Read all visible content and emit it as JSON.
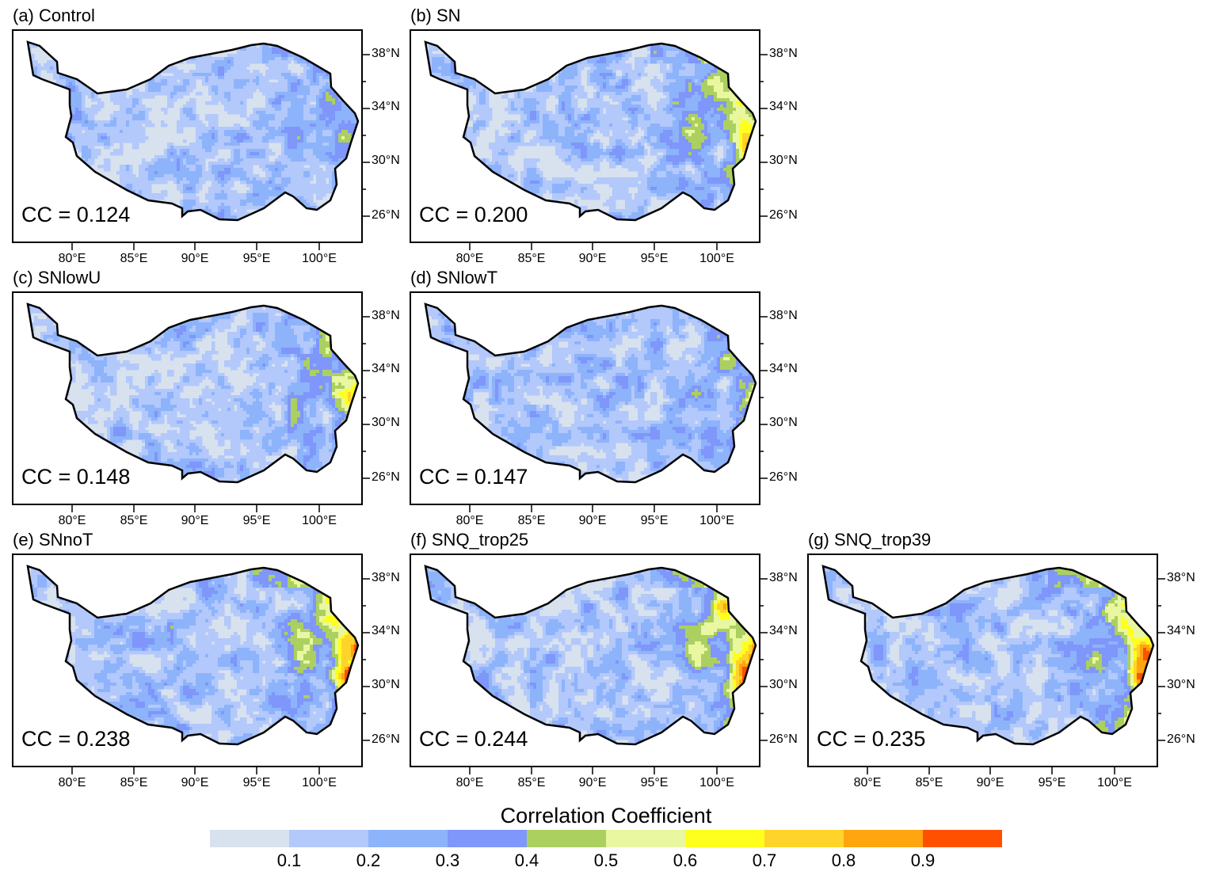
{
  "colorbar": {
    "title": "Correlation Coefficient",
    "labels": [
      "0.1",
      "0.2",
      "0.3",
      "0.4",
      "0.5",
      "0.6",
      "0.7",
      "0.8",
      "0.9"
    ],
    "colors": [
      "#d7e2ee",
      "#b3c8fb",
      "#8db3fb",
      "#7f96fa",
      "#acd060",
      "#e8f7a0",
      "#ffff1e",
      "#ffd42a",
      "#ffa50f",
      "#ff5000"
    ]
  },
  "axes": {
    "lon_labels": [
      "80°E",
      "85°E",
      "90°E",
      "95°E",
      "100°E"
    ],
    "lat_labels": [
      "38°N",
      "34°N",
      "30°N",
      "26°N"
    ]
  },
  "panels": [
    {
      "title": "(a) Control",
      "cc_text": "CC = 0.124",
      "cc": 0.124
    },
    {
      "title": "(b) SN",
      "cc_text": "CC = 0.200",
      "cc": 0.2
    },
    {
      "title": "(c) SNlowU",
      "cc_text": "CC = 0.148",
      "cc": 0.148
    },
    {
      "title": "(d) SNlowT",
      "cc_text": "CC = 0.147",
      "cc": 0.147
    },
    {
      "title": "(e) SNnoT",
      "cc_text": "CC = 0.238",
      "cc": 0.238
    },
    {
      "title": "(f) SNQ_trop25",
      "cc_text": "CC = 0.244",
      "cc": 0.244
    },
    {
      "title": "(g) SNQ_trop39",
      "cc_text": "CC = 0.235",
      "cc": 0.235
    }
  ]
}
